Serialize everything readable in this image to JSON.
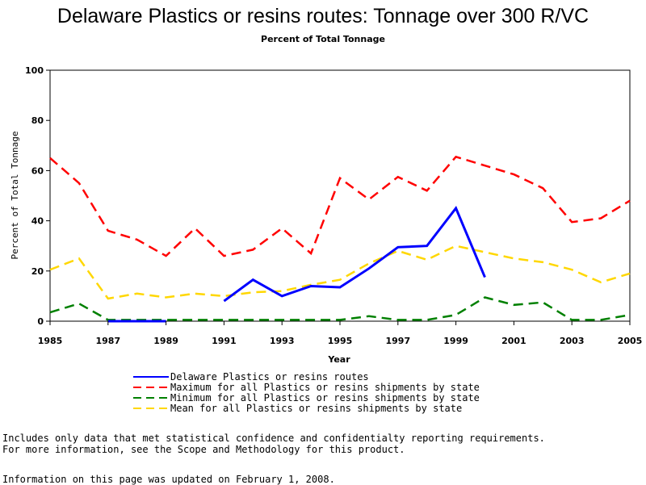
{
  "chart_data": {
    "type": "line",
    "title": "Delaware Plastics or resins routes: Tonnage over 300 R/VC",
    "subtitle": "Percent of Total Tonnage",
    "xlabel": "Year",
    "ylabel": "Percent of Total Tonnage",
    "xlim": [
      1985,
      2005
    ],
    "ylim": [
      0,
      100
    ],
    "x_ticks": [
      "1985",
      "1987",
      "1989",
      "1991",
      "1993",
      "1995",
      "1997",
      "1999",
      "2001",
      "2003",
      "2005"
    ],
    "y_ticks": [
      "0",
      "20",
      "40",
      "60",
      "80",
      "100"
    ],
    "grid": false,
    "legend_position": "bottom",
    "series": [
      {
        "name": "Delaware Plastics or resins routes",
        "color": "#0000ff",
        "dash": "solid",
        "x": [
          1987,
          1988,
          1989
        ],
        "y": [
          0,
          0,
          0
        ]
      },
      {
        "name": "Delaware Plastics or resins routes",
        "color": "#0000ff",
        "dash": "solid",
        "x": [
          1991,
          1992,
          1993,
          1994,
          1995,
          1996,
          1997,
          1998,
          1999,
          2000
        ],
        "y": [
          8,
          16.5,
          10,
          14,
          13.5,
          21,
          29.5,
          30,
          45,
          17.5
        ]
      },
      {
        "name": "Maximum for all Plastics or resins shipments by state",
        "color": "#ff0000",
        "dash": "dashed",
        "x": [
          1985,
          1986,
          1987,
          1988,
          1989,
          1990,
          1991,
          1992,
          1993,
          1994,
          1995,
          1996,
          1997,
          1998,
          1999,
          2000,
          2001,
          2002,
          2003,
          2004,
          2005
        ],
        "y": [
          65,
          55,
          36,
          32.5,
          26,
          37,
          26,
          28.5,
          37,
          27,
          57,
          48.5,
          57.5,
          52,
          65.5,
          62,
          58.5,
          53,
          39.5,
          41,
          48
        ]
      },
      {
        "name": "Minimum for all Plastics or resins shipments by state",
        "color": "#008000",
        "dash": "dashed",
        "x": [
          1985,
          1986,
          1987,
          1988,
          1989,
          1990,
          1991,
          1992,
          1993,
          1994,
          1995,
          1996,
          1997,
          1998,
          1999,
          2000,
          2001,
          2002,
          2003,
          2004,
          2005
        ],
        "y": [
          3.5,
          7,
          0.5,
          0.5,
          0.5,
          0.5,
          0.5,
          0.5,
          0.5,
          0.5,
          0.5,
          2,
          0.5,
          0.5,
          2.5,
          9.5,
          6.5,
          7.5,
          0.5,
          0.5,
          2.5
        ]
      },
      {
        "name": "Mean for all Plastics or resins shipments by state",
        "color": "#ffd700",
        "dash": "dashed",
        "x": [
          1985,
          1986,
          1987,
          1988,
          1989,
          1990,
          1991,
          1992,
          1993,
          1994,
          1995,
          1996,
          1997,
          1998,
          1999,
          2000,
          2001,
          2002,
          2003,
          2004,
          2005
        ],
        "y": [
          20.5,
          25,
          9,
          11,
          9.5,
          11,
          10,
          11.5,
          12,
          14.5,
          16.5,
          23,
          28,
          24.5,
          30,
          27.5,
          25,
          23.5,
          20.5,
          15.5,
          19
        ]
      }
    ]
  },
  "legend": [
    {
      "label": "Delaware Plastics or resins routes",
      "color": "#0000ff",
      "dash": "solid"
    },
    {
      "label": "Maximum for all Plastics or resins shipments by state",
      "color": "#ff0000",
      "dash": "dashed"
    },
    {
      "label": "Minimum for all Plastics or resins shipments by state",
      "color": "#008000",
      "dash": "dashed"
    },
    {
      "label": "Mean for all Plastics or resins shipments by state",
      "color": "#ffd700",
      "dash": "dashed"
    }
  ],
  "notes": {
    "line1": "Includes only data that met statistical confidence and confidentialty reporting requirements.",
    "line2": "For more information, see the Scope and Methodology for this product.",
    "updated": "Information on this page was updated on February 1, 2008."
  }
}
